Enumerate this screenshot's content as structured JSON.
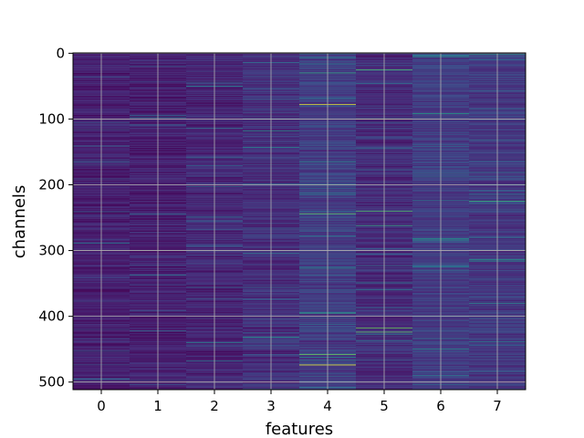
{
  "chart_data": {
    "type": "heatmap",
    "title": "",
    "xlabel": "features",
    "ylabel": "channels",
    "colormap": "viridis",
    "colorscale_range": [
      0,
      1
    ],
    "x": [
      0,
      1,
      2,
      3,
      4,
      5,
      6,
      7
    ],
    "x_tick_labels": [
      "0",
      "1",
      "2",
      "3",
      "4",
      "5",
      "6",
      "7"
    ],
    "y_ticks": [
      0,
      100,
      200,
      300,
      400,
      500
    ],
    "y_tick_labels": [
      "0",
      "100",
      "200",
      "300",
      "400",
      "500"
    ],
    "xlim": [
      -0.5,
      7.5
    ],
    "ylim": [
      511.5,
      -0.5
    ],
    "y_inverted": true,
    "n_channels": 512,
    "grid": true,
    "grid_color": "#b0b0b0",
    "background_level_per_feature": [
      0.1,
      0.1,
      0.12,
      0.15,
      0.2,
      0.14,
      0.2,
      0.18
    ],
    "highlight_rows": [
      {
        "feature": 4,
        "channel": 30,
        "value": 0.7
      },
      {
        "feature": 4,
        "channel": 78,
        "value": 0.98
      },
      {
        "feature": 4,
        "channel": 200,
        "value": 0.75
      },
      {
        "feature": 4,
        "channel": 244,
        "value": 0.85
      },
      {
        "feature": 4,
        "channel": 395,
        "value": 0.7
      },
      {
        "feature": 4,
        "channel": 458,
        "value": 0.88
      },
      {
        "feature": 4,
        "channel": 474,
        "value": 1.0
      },
      {
        "feature": 5,
        "channel": 25,
        "value": 0.8
      },
      {
        "feature": 5,
        "channel": 100,
        "value": 1.0
      },
      {
        "feature": 5,
        "channel": 240,
        "value": 0.82
      },
      {
        "feature": 5,
        "channel": 262,
        "value": 0.7
      },
      {
        "feature": 5,
        "channel": 418,
        "value": 0.88
      },
      {
        "feature": 5,
        "channel": 424,
        "value": 0.85
      },
      {
        "feature": 6,
        "channel": 92,
        "value": 0.65
      },
      {
        "feature": 6,
        "channel": 282,
        "value": 0.6
      },
      {
        "feature": 6,
        "channel": 284,
        "value": 0.62
      },
      {
        "feature": 6,
        "channel": 450,
        "value": 0.55
      },
      {
        "feature": 7,
        "channel": 2,
        "value": 0.65
      },
      {
        "feature": 7,
        "channel": 225,
        "value": 0.75
      },
      {
        "feature": 7,
        "channel": 314,
        "value": 0.6
      },
      {
        "feature": 7,
        "channel": 316,
        "value": 0.58
      },
      {
        "feature": 7,
        "channel": 380,
        "value": 0.55
      },
      {
        "feature": 2,
        "channel": 50,
        "value": 0.5
      },
      {
        "feature": 2,
        "channel": 440,
        "value": 0.5
      },
      {
        "feature": 3,
        "channel": 118,
        "value": 0.55
      },
      {
        "feature": 3,
        "channel": 432,
        "value": 0.6
      }
    ]
  }
}
